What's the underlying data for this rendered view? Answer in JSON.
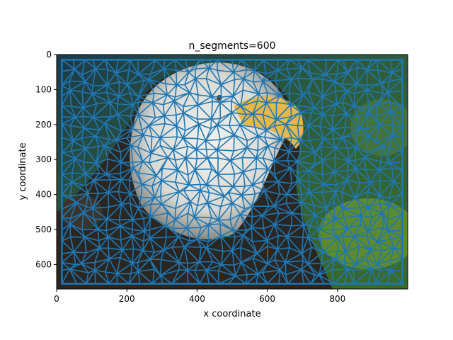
{
  "chart_data": {
    "type": "image-with-triangulation-mesh",
    "title": "n_segments=600",
    "xlabel": "x coordinate",
    "ylabel": "y coordinate",
    "xlim": [
      0,
      1000
    ],
    "ylim": [
      670,
      0
    ],
    "xticks": [
      0,
      200,
      400,
      600,
      800
    ],
    "yticks": [
      0,
      100,
      200,
      300,
      400,
      500,
      600
    ],
    "image_extent": {
      "width": 1000,
      "height": 670
    },
    "mesh_color": "#1f77b4",
    "mesh_segments": 600
  }
}
